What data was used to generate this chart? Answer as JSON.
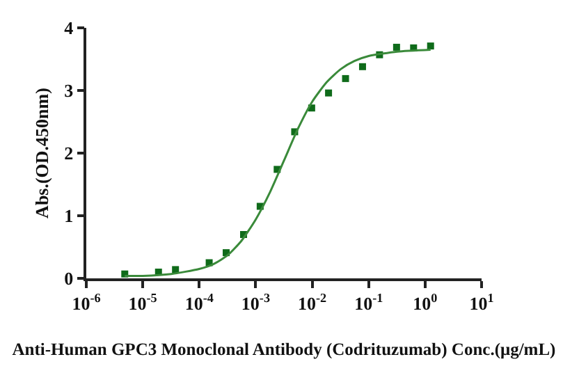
{
  "chart_data": {
    "type": "scatter",
    "xlabel": "Anti-Human GPC3 Monoclonal Antibody (Codrituzumab) Conc.(μg/mL)",
    "ylabel": "Abs.(OD.450nm)",
    "series": [
      {
        "color": "#0f6b1a",
        "marker": "square",
        "x": [
          4.8e-06,
          1.9e-05,
          3.8e-05,
          0.00015,
          0.0003,
          0.00061,
          0.0012,
          0.0024,
          0.0049,
          0.0098,
          0.0195,
          0.039,
          0.078,
          0.156,
          0.3125,
          0.625,
          1.25
        ],
        "values": [
          0.07,
          0.1,
          0.14,
          0.25,
          0.41,
          0.7,
          1.15,
          1.74,
          2.34,
          2.72,
          2.96,
          3.19,
          3.38,
          3.57,
          3.69,
          3.68,
          3.71
        ]
      },
      {
        "type": "line",
        "color": "#3a8a3a",
        "marker": "none",
        "line_style": "solid",
        "x": [
          4.8e-06,
          1e-05,
          3.2e-05,
          0.0001,
          0.00018,
          0.00032,
          0.00056,
          0.001,
          0.0018,
          0.0032,
          0.0056,
          0.01,
          0.018,
          0.032,
          0.056,
          0.1,
          0.32,
          1.25
        ],
        "values": [
          0.04,
          0.04,
          0.07,
          0.15,
          0.23,
          0.37,
          0.6,
          0.94,
          1.38,
          1.89,
          2.39,
          2.82,
          3.13,
          3.34,
          3.47,
          3.55,
          3.62,
          3.65
        ]
      }
    ],
    "log": "x",
    "xlim": [
      1e-06,
      10
    ],
    "ylim": [
      0,
      4
    ],
    "xticks": [
      {
        "value": 1e-06,
        "label": "10$^{-6}$"
      },
      {
        "value": 1e-05,
        "label": "10$^{-5}$"
      },
      {
        "value": 0.0001,
        "label": "10$^{-4}$"
      },
      {
        "value": 0.001,
        "label": "10$^{-3}$"
      },
      {
        "value": 0.01,
        "label": "10$^{-2}$"
      },
      {
        "value": 0.1,
        "label": "10$^{-1}$"
      },
      {
        "value": 1,
        "label": "10$^{0}$"
      },
      {
        "value": 10,
        "label": "10$^{1}$"
      }
    ],
    "yticks": [
      0,
      1,
      2,
      3,
      4
    ]
  }
}
